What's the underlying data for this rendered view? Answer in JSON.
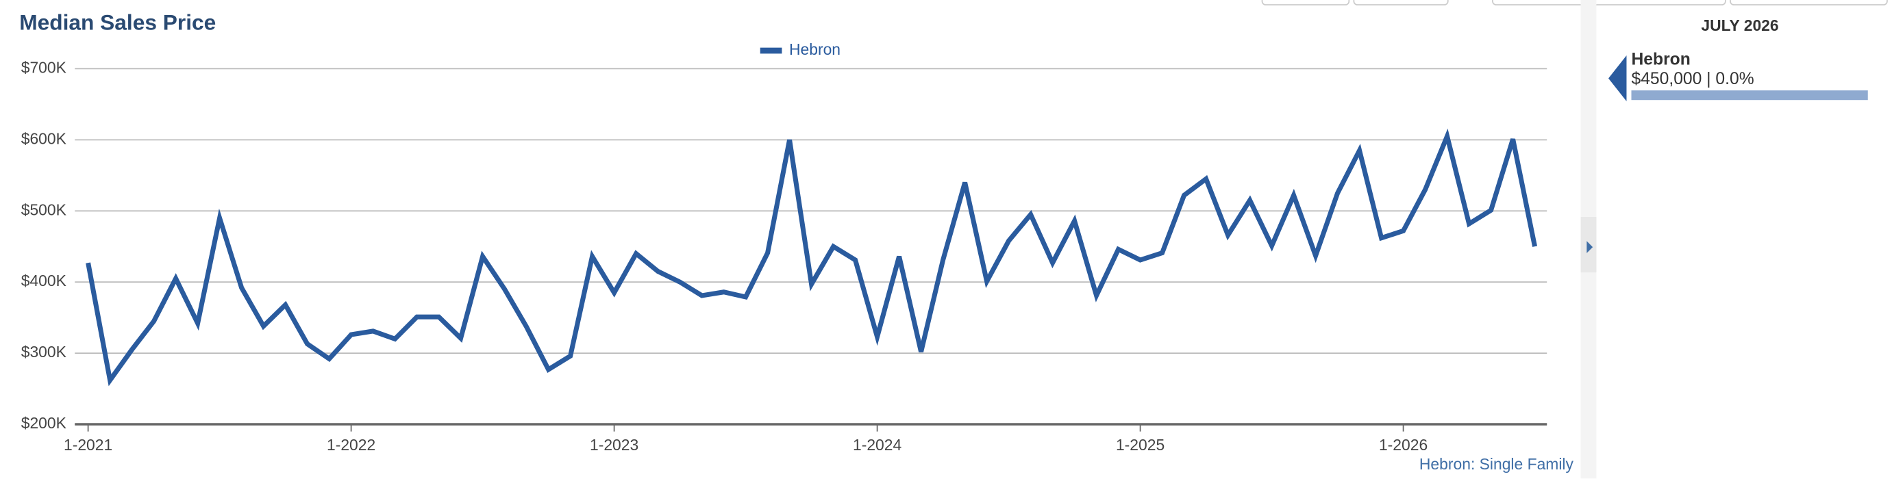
{
  "chart_data": {
    "type": "line",
    "title": "Median Sales Price",
    "categories": [
      "1-2021",
      null,
      null,
      null,
      null,
      null,
      null,
      null,
      null,
      null,
      null,
      null,
      "1-2022",
      null,
      null,
      null,
      null,
      null,
      null,
      null,
      null,
      null,
      null,
      null,
      "1-2023",
      null,
      null,
      null,
      null,
      null,
      null,
      null,
      null,
      null,
      null,
      null,
      "1-2024",
      null,
      null,
      null,
      null,
      null,
      null,
      null,
      null,
      null,
      null,
      null,
      "1-2025",
      null,
      null,
      null,
      null,
      null,
      null,
      null,
      null,
      null,
      null,
      null,
      "1-2026",
      null,
      null,
      null,
      null,
      null,
      null
    ],
    "series": [
      {
        "name": "Hebron",
        "color": "#2a5b9e",
        "values": [
          427000,
          262000,
          305000,
          345000,
          405000,
          342000,
          490000,
          392000,
          338000,
          368000,
          313000,
          292000,
          326000,
          331000,
          320000,
          351000,
          351000,
          321000,
          436000,
          390000,
          337000,
          277000,
          296000,
          436000,
          385000,
          440000,
          415000,
          400000,
          381000,
          386000,
          379000,
          441000,
          600000,
          397000,
          450000,
          431000,
          323000,
          436000,
          302000,
          431000,
          540000,
          401000,
          458000,
          495000,
          427000,
          486000,
          381000,
          446000,
          431000,
          441000,
          522000,
          545000,
          466000,
          515000,
          451000,
          522000,
          437000,
          525000,
          585000,
          462000,
          472000,
          530000,
          605000,
          482000,
          501000,
          601000,
          450000
        ]
      }
    ],
    "ylim": [
      200000,
      700000
    ],
    "yticks": [
      {
        "value": 200000,
        "label": "$200K"
      },
      {
        "value": 300000,
        "label": "$300K"
      },
      {
        "value": 400000,
        "label": "$400K"
      },
      {
        "value": 500000,
        "label": "$500K"
      },
      {
        "value": 600000,
        "label": "$600K"
      },
      {
        "value": 700000,
        "label": "$700K"
      }
    ],
    "grid": true,
    "panel": {
      "date": "JULY 2026",
      "name": "Hebron",
      "value_text": "$450,000 | 0.0%"
    },
    "source": "Hebron: Single Family"
  }
}
